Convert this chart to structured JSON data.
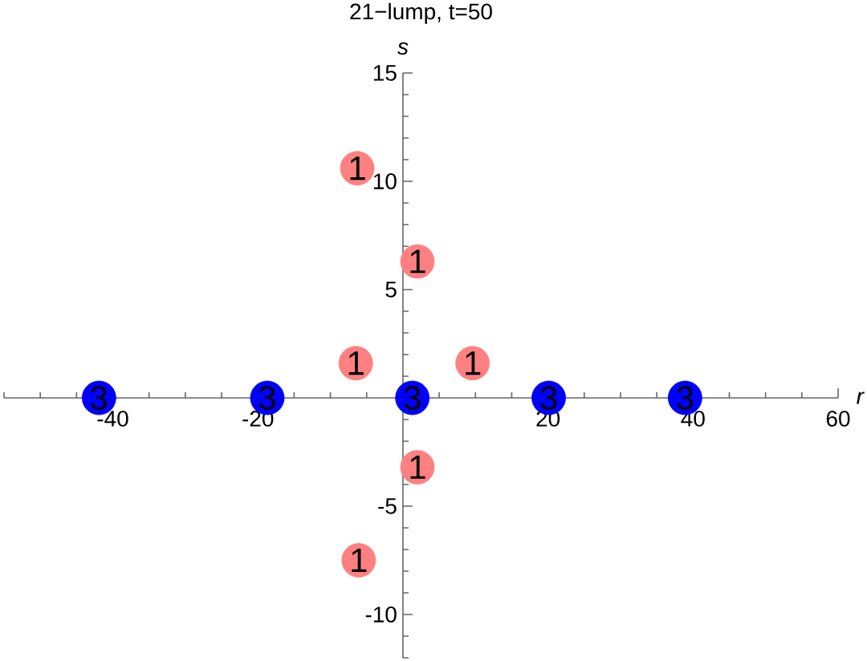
{
  "chart_data": {
    "type": "scatter",
    "title": "21−lump, t=50",
    "xlabel": "r",
    "ylabel": "s",
    "series": [
      {
        "color": "#ff8080",
        "x": [
          -6.3,
          2.0,
          -6.5,
          9.6,
          2.0,
          -6.1
        ],
        "values": [
          10.6,
          6.3,
          1.6,
          1.6,
          -3.2,
          -7.5
        ]
      },
      {
        "color": "#0000ff",
        "x": [
          -41.9,
          -18.7,
          1.3,
          20.1,
          38.9
        ],
        "values": [
          0,
          0,
          0,
          0,
          0
        ]
      }
    ],
    "annotations": [
      {
        "text": "1",
        "x": -6.3,
        "y": 10.6
      },
      {
        "text": "1",
        "x": 2.0,
        "y": 6.3
      },
      {
        "text": "1",
        "x": -6.5,
        "y": 1.6
      },
      {
        "text": "1",
        "x": 9.6,
        "y": 1.6
      },
      {
        "text": "1",
        "x": 2.0,
        "y": -3.2
      },
      {
        "text": "1",
        "x": -6.1,
        "y": -7.5
      },
      {
        "text": "3",
        "x": -41.9,
        "y": 0
      },
      {
        "text": "3",
        "x": -18.7,
        "y": 0
      },
      {
        "text": "3",
        "x": 1.3,
        "y": 0
      },
      {
        "text": "3",
        "x": 20.1,
        "y": 0
      },
      {
        "text": "3",
        "x": 38.9,
        "y": 0
      }
    ],
    "xlim": [
      -55,
      60
    ],
    "ylim": [
      -12,
      15
    ],
    "xticks": [
      -40,
      -20,
      20,
      40,
      60
    ],
    "yticks": [
      -10,
      -5,
      5,
      10,
      15
    ],
    "marker": "circle"
  }
}
